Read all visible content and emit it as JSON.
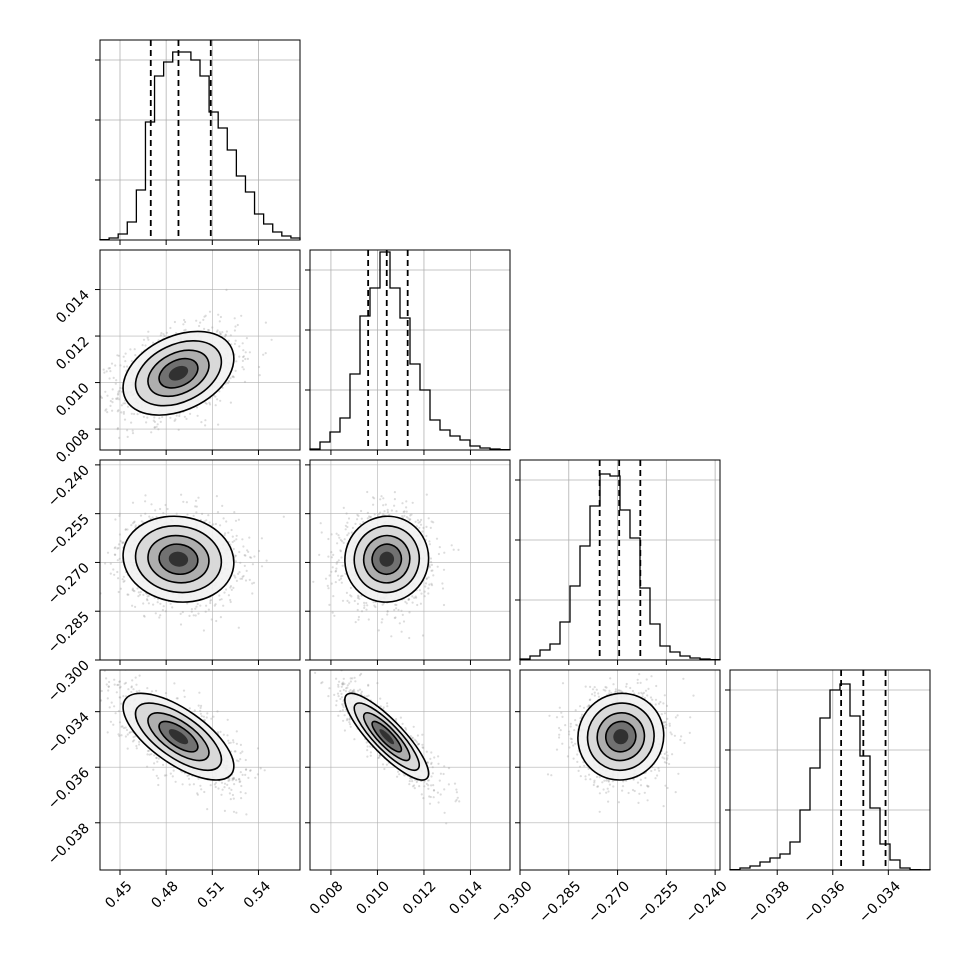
{
  "chart_data": {
    "type": "corner",
    "grid": true,
    "colors": {
      "hist": "#000000",
      "grid": "#b0b0b0",
      "scatter": "#9a9a9a",
      "quantile": "#000000"
    },
    "params": [
      {
        "ticks": [
          0.45,
          0.48,
          0.51,
          0.54
        ],
        "tick_labels": [
          "0.45",
          "0.48",
          "0.51",
          "0.54"
        ],
        "range": [
          0.437,
          0.567
        ],
        "mean": 0.488,
        "std": 0.018
      },
      {
        "ticks": [
          0.008,
          0.01,
          0.012,
          0.014
        ],
        "tick_labels": [
          "0.008",
          "0.010",
          "0.012",
          "0.014"
        ],
        "range": [
          0.0071,
          0.0157
        ],
        "mean": 0.0104,
        "std": 0.0009
      },
      {
        "ticks": [
          -0.3,
          -0.285,
          -0.27,
          -0.255,
          -0.24
        ],
        "tick_labels": [
          "−0.300",
          "−0.285",
          "−0.270",
          "−0.255",
          "−0.240"
        ],
        "range": [
          -0.3,
          -0.2385
        ],
        "mean": -0.269,
        "std": 0.0066
      },
      {
        "ticks": [
          -0.038,
          -0.036,
          -0.034
        ],
        "tick_labels": [
          "−0.038",
          "−0.036",
          "−0.034"
        ],
        "range": [
          -0.0397,
          -0.0325
        ],
        "mean": -0.0349,
        "std": 0.00078
      }
    ],
    "quantiles": [
      [
        0.47,
        0.488,
        0.509
      ],
      [
        0.0096,
        0.0104,
        0.0113
      ],
      [
        -0.2755,
        -0.2695,
        -0.263
      ],
      [
        -0.0357,
        -0.0349,
        -0.0341
      ]
    ],
    "histograms": [
      [
        0.002,
        0.01,
        0.03,
        0.09,
        0.25,
        0.59,
        0.82,
        0.89,
        0.94,
        0.94,
        0.9,
        0.82,
        0.64,
        0.56,
        0.45,
        0.32,
        0.24,
        0.13,
        0.08,
        0.04,
        0.02,
        0.01
      ],
      [
        0.005,
        0.04,
        0.09,
        0.16,
        0.38,
        0.67,
        0.81,
        0.99,
        0.81,
        0.66,
        0.43,
        0.3,
        0.15,
        0.1,
        0.07,
        0.05,
        0.02,
        0.01,
        0.005,
        0.002
      ],
      [
        0.005,
        0.02,
        0.05,
        0.08,
        0.19,
        0.37,
        0.57,
        0.77,
        0.93,
        0.92,
        0.75,
        0.61,
        0.36,
        0.18,
        0.07,
        0.04,
        0.02,
        0.01,
        0.005,
        0.002
      ],
      [
        0.002,
        0.01,
        0.02,
        0.04,
        0.06,
        0.08,
        0.14,
        0.3,
        0.51,
        0.76,
        0.9,
        0.93,
        0.77,
        0.57,
        0.31,
        0.13,
        0.05,
        0.01,
        0.002,
        0.001
      ]
    ],
    "correlations": {
      "1-0": 0.35,
      "2-0": -0.08,
      "2-1": 0.02,
      "3-0": -0.68,
      "3-1": -0.85,
      "3-2": 0.03
    }
  }
}
